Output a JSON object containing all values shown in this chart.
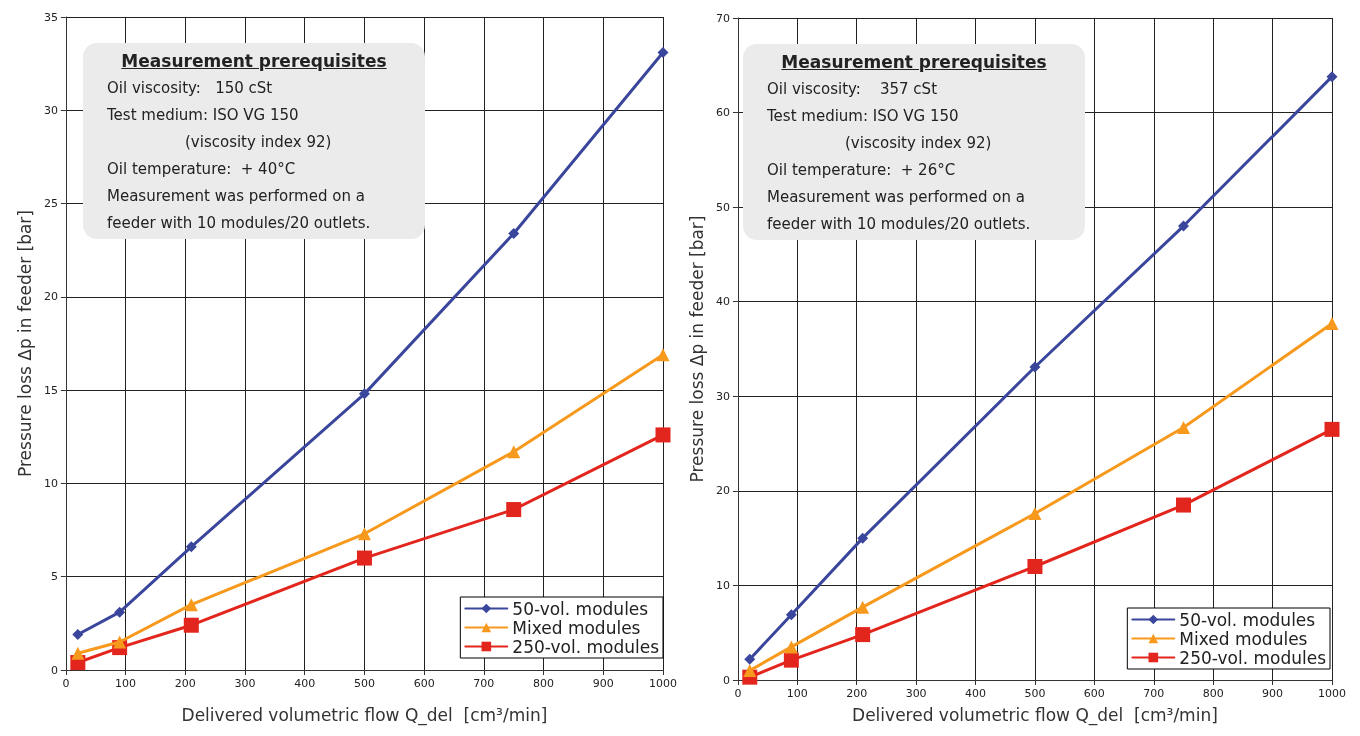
{
  "chart_data": [
    {
      "type": "line",
      "xlabel": "Delivered volumetric flow Q_del  [cm³/min]",
      "ylabel": "Pressure loss Δp in feeder [bar]",
      "x": [
        20,
        90,
        210,
        500,
        750,
        1000
      ],
      "xlim": [
        0,
        1000
      ],
      "xticks": [
        0,
        100,
        200,
        300,
        400,
        500,
        600,
        700,
        800,
        900,
        1000
      ],
      "ylim": [
        0,
        35
      ],
      "yticks": [
        0,
        5,
        10,
        15,
        20,
        25,
        30,
        35
      ],
      "grid": true,
      "legend": "bottom right",
      "annotations": [
        "Measurement prerequisites",
        "Oil viscosity:   150 cSt",
        "Test medium: ISO VG 150",
        "(viscosity index 92)",
        "Oil temperature:  + 40°C",
        "Measurement was performed on a",
        "feeder with 10 modules/20 outlets."
      ],
      "series": [
        {
          "name": "50-vol. modules",
          "color": "#3a469c",
          "marker": "diamond",
          "values": [
            1.9,
            3.1,
            6.6,
            14.8,
            23.4,
            33.1
          ]
        },
        {
          "name": "Mixed modules",
          "color": "#f7991c",
          "marker": "triangle",
          "values": [
            0.9,
            1.5,
            3.5,
            7.3,
            11.7,
            16.9
          ]
        },
        {
          "name": "250-vol. modules",
          "color": "#e3261d",
          "marker": "square",
          "values": [
            0.4,
            1.2,
            2.4,
            6.0,
            8.6,
            12.6
          ]
        }
      ]
    },
    {
      "type": "line",
      "xlabel": "Delivered volumetric flow Q_del  [cm³/min]",
      "ylabel": "Pressure loss Δp in feeder [bar]",
      "x": [
        20,
        90,
        210,
        500,
        750,
        1000
      ],
      "xlim": [
        0,
        1000
      ],
      "xticks": [
        0,
        100,
        200,
        300,
        400,
        500,
        600,
        700,
        800,
        900,
        1000
      ],
      "ylim": [
        0,
        70
      ],
      "yticks": [
        0,
        10,
        20,
        30,
        40,
        50,
        60,
        70
      ],
      "grid": true,
      "legend": "bottom right",
      "annotations": [
        "Measurement prerequisites",
        "Oil viscosity:    357 cSt",
        "Test medium: ISO VG 150",
        "(viscosity index 92)",
        "Oil temperature:  + 26°C",
        "Measurement was performed on a",
        "feeder with 10 modules/20 outlets."
      ],
      "series": [
        {
          "name": "50-vol. modules",
          "color": "#3a469c",
          "marker": "diamond",
          "values": [
            2.2,
            6.9,
            15.0,
            33.1,
            48.0,
            63.8
          ]
        },
        {
          "name": "Mixed modules",
          "color": "#f7991c",
          "marker": "triangle",
          "values": [
            1.0,
            3.5,
            7.7,
            17.6,
            26.7,
            37.7
          ]
        },
        {
          "name": "250-vol. modules",
          "color": "#e3261d",
          "marker": "square",
          "values": [
            0.3,
            2.1,
            4.8,
            12.0,
            18.5,
            26.5
          ]
        }
      ]
    }
  ]
}
